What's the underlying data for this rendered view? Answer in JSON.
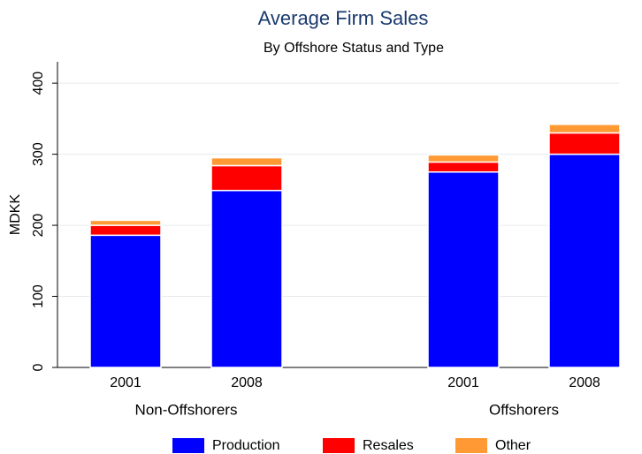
{
  "chart_data": {
    "type": "stacked_bar",
    "title": "Average Firm Sales",
    "subtitle": "By Offshore Status and Type",
    "ylabel": "MDKK",
    "groups": [
      {
        "name": "Non-Offshorers",
        "categories": [
          "2001",
          "2008"
        ]
      },
      {
        "name": "Offshorers",
        "categories": [
          "2001",
          "2008"
        ]
      }
    ],
    "series": [
      {
        "name": "Production",
        "color": "#0000ff",
        "values": [
          186,
          249,
          275,
          300
        ]
      },
      {
        "name": "Resales",
        "color": "#ff0000",
        "values": [
          14,
          35,
          14,
          30
        ]
      },
      {
        "name": "Other",
        "color": "#ff9933",
        "values": [
          7,
          11,
          10,
          12
        ]
      }
    ],
    "ylim": [
      0,
      430
    ],
    "yticks": [
      0,
      100,
      200,
      300,
      400
    ],
    "grid": true
  }
}
